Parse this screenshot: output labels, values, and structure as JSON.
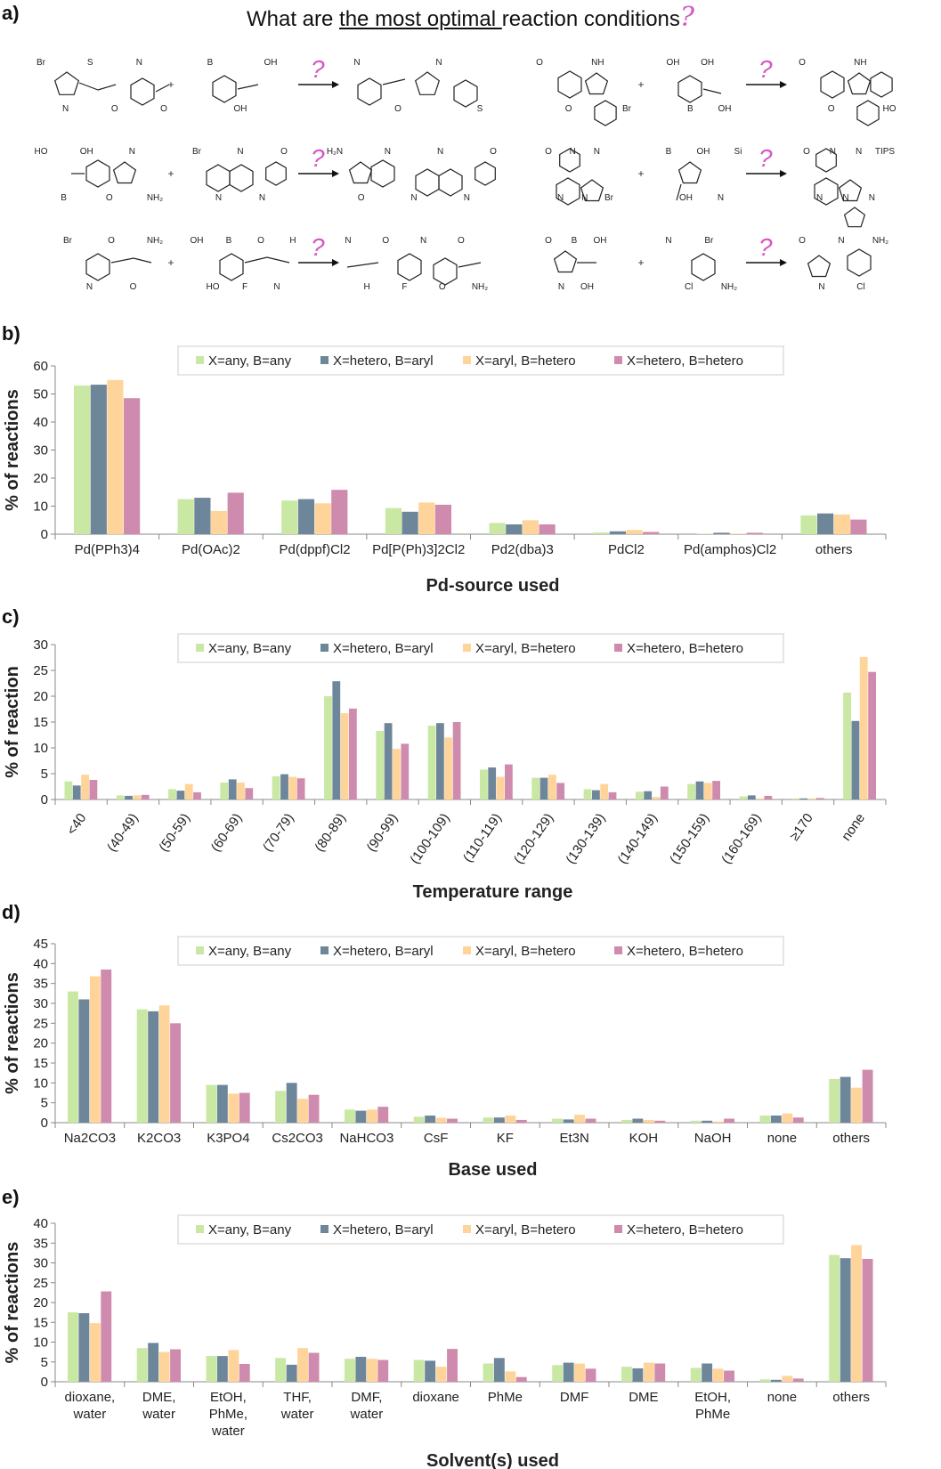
{
  "figure": {
    "panel_labels": [
      "a)",
      "b)",
      "c)",
      "d)",
      "e)"
    ],
    "question": {
      "prefix": "What are ",
      "underlined": "the most optimal ",
      "suffix": "reaction conditions",
      "mark": "?"
    },
    "colors": {
      "s1": "#c9e8a3",
      "s2": "#6e8699",
      "s3": "#ffd49a",
      "s4": "#cf8bad",
      "question": "#d657c4"
    },
    "reactions": [
      {
        "reactant1": "aryl bromide amide",
        "reactant2": "aryl boronic acid",
        "product": "biaryl amide",
        "mark": "?"
      },
      {
        "reactant1": "bromo indole ester",
        "reactant2": "2-hydroxyphenyl boronic acid",
        "product": "aryl indole",
        "mark": "?"
      },
      {
        "reactant1": "benzoxazole boronic acid",
        "reactant2": "bromo naphthyridine",
        "product": "biaryl",
        "mark": "?"
      },
      {
        "reactant1": "bromo imidazopyrazine",
        "reactant2": "pyrrole boronic acid",
        "product": "pyrrolyl imidazopyrazine",
        "mark": "?"
      },
      {
        "reactant1": "bromo pyridine ester",
        "reactant2": "fluoro aryl boronic acid",
        "product": "biaryl ester",
        "mark": "?"
      },
      {
        "reactant1": "isoxazole boronic acid",
        "reactant2": "bromo chloropyridine",
        "product": "isoxazolyl pyridine",
        "mark": "?"
      }
    ],
    "atom_labels": {
      "r1": [
        "Br",
        "N",
        "S",
        "O",
        "N",
        "O"
      ],
      "r2": [
        "B",
        "OH",
        "OH"
      ],
      "r3": [
        "N",
        "O",
        "N",
        "S"
      ],
      "r4": [
        "O",
        "O",
        "NH",
        "Br"
      ],
      "r5": [
        "OH",
        "B",
        "OH",
        "OH"
      ],
      "r6": [
        "O",
        "O",
        "NH",
        "HO"
      ],
      "r7": [
        "HO",
        "B",
        "OH",
        "O",
        "N",
        "NH₂"
      ],
      "r8": [
        "Br",
        "N",
        "N",
        "N",
        "O"
      ],
      "r9": [
        "H₂N",
        "O",
        "N",
        "N",
        "N",
        "N",
        "O"
      ],
      "r10": [
        "O",
        "N",
        "N",
        "N",
        "N",
        "Br"
      ],
      "r11": [
        "B",
        "OH",
        "OH",
        "N",
        "Si"
      ],
      "r12": [
        "O",
        "N",
        "N",
        "N",
        "N",
        "N",
        "TIPS"
      ],
      "r13": [
        "Br",
        "N",
        "O",
        "O",
        "NH₂"
      ],
      "r14": [
        "OH",
        "HO",
        "B",
        "F",
        "O",
        "N",
        "H"
      ],
      "r15": [
        "N",
        "H",
        "O",
        "F",
        "N",
        "O",
        "O",
        "NH₂"
      ],
      "r16": [
        "O",
        "N",
        "B",
        "OH",
        "OH"
      ],
      "r17": [
        "N",
        "Cl",
        "Br",
        "NH₂"
      ],
      "r18": [
        "O",
        "N",
        "N",
        "Cl",
        "NH₂"
      ]
    }
  },
  "chart_data": [
    {
      "type": "bar",
      "panel": "b)",
      "xlabel": "Pd-source used",
      "ylabel": "% of reactions",
      "ylim": [
        0,
        60
      ],
      "yticks": [
        0,
        10,
        20,
        30,
        40,
        50,
        60
      ],
      "legend_position": "top-center",
      "categories": [
        "Pd(PPh3)4",
        "Pd(OAc)2",
        "Pd(dppf)Cl2",
        "Pd[P(Ph)3]2Cl2",
        "Pd2(dba)3",
        "PdCl2",
        "Pd(amphos)Cl2",
        "others"
      ],
      "series": [
        {
          "name": "X=any, B=any",
          "values": [
            53,
            12.5,
            12,
            9.3,
            4,
            0.6,
            0.2,
            6.7
          ]
        },
        {
          "name": "X=hetero, B=aryl",
          "values": [
            53.3,
            13,
            12.5,
            8,
            3.5,
            1,
            0.5,
            7.4
          ]
        },
        {
          "name": "X=aryl, B=hetero",
          "values": [
            55,
            8.3,
            11,
            11.3,
            5,
            1.5,
            0.2,
            7
          ]
        },
        {
          "name": "X=hetero, B=hetero",
          "values": [
            48.5,
            14.8,
            15.8,
            10.5,
            3.5,
            0.8,
            0.5,
            5.2
          ]
        }
      ]
    },
    {
      "type": "bar",
      "panel": "c)",
      "xlabel": "Temperature range",
      "ylabel": "% of reaction",
      "ylim": [
        0,
        30
      ],
      "yticks": [
        0,
        5,
        10,
        15,
        20,
        25,
        30
      ],
      "legend_position": "top-center",
      "categories": [
        "<40",
        "(40-49)",
        "(50-59)",
        "(60-69)",
        "(70-79)",
        "(80-89)",
        "(90-99)",
        "(100-109)",
        "(110-119)",
        "(120-129)",
        "(130-139)",
        "(140-149)",
        "(150-159)",
        "(160-169)",
        "≥170",
        "none"
      ],
      "series": [
        {
          "name": "X=any, B=any",
          "values": [
            3.5,
            0.8,
            2,
            3.3,
            4.5,
            20,
            13.3,
            14.3,
            5.8,
            4.2,
            2,
            1.5,
            3,
            0.6,
            0.2,
            20.7
          ]
        },
        {
          "name": "X=hetero, B=aryl",
          "values": [
            2.7,
            0.7,
            1.7,
            3.9,
            4.9,
            22.9,
            14.8,
            14.8,
            6.2,
            4.2,
            1.8,
            1.6,
            3.5,
            0.8,
            0.2,
            15.2
          ]
        },
        {
          "name": "X=aryl, B=hetero",
          "values": [
            4.8,
            0.8,
            3,
            3.3,
            4.4,
            16.7,
            9.8,
            12,
            4.4,
            4.8,
            3,
            0.5,
            3.2,
            0.2,
            0.2,
            27.6
          ]
        },
        {
          "name": "X=hetero, B=hetero",
          "values": [
            3.8,
            0.9,
            1.4,
            2.2,
            4.1,
            17.6,
            10.8,
            15,
            6.8,
            3.2,
            1.4,
            2.5,
            3.6,
            0.7,
            0.3,
            24.7
          ]
        }
      ]
    },
    {
      "type": "bar",
      "panel": "d)",
      "xlabel": "Base used",
      "ylabel": "% of reactions",
      "ylim": [
        0,
        45
      ],
      "yticks": [
        0,
        5,
        10,
        15,
        20,
        25,
        30,
        35,
        40,
        45
      ],
      "legend_position": "top-center",
      "categories": [
        "Na2CO3",
        "K2CO3",
        "K3PO4",
        "Cs2CO3",
        "NaHCO3",
        "CsF",
        "KF",
        "Et3N",
        "KOH",
        "NaOH",
        "none",
        "others"
      ],
      "series": [
        {
          "name": "X=any, B=any",
          "values": [
            33,
            28.5,
            9.5,
            8,
            3.3,
            1.5,
            1.3,
            1,
            0.7,
            0.5,
            1.8,
            11
          ]
        },
        {
          "name": "X=hetero, B=aryl",
          "values": [
            31,
            28,
            9.5,
            10,
            3,
            1.8,
            1.3,
            0.8,
            1,
            0.5,
            1.8,
            11.5
          ]
        },
        {
          "name": "X=aryl, B=hetero",
          "values": [
            36.8,
            29.5,
            7.3,
            6,
            3.3,
            1.2,
            1.8,
            2,
            0.7,
            0.3,
            2.3,
            8.8
          ]
        },
        {
          "name": "X=hetero, B=hetero",
          "values": [
            38.5,
            25,
            7.5,
            7,
            4,
            1,
            0.7,
            1,
            0.5,
            1,
            1.3,
            13.3
          ]
        }
      ]
    },
    {
      "type": "bar",
      "panel": "e)",
      "xlabel": "Solvent(s) used",
      "ylabel": "% of reactions",
      "ylim": [
        0,
        40
      ],
      "yticks": [
        0,
        5,
        10,
        15,
        20,
        25,
        30,
        35,
        40
      ],
      "legend_position": "top-center",
      "categories": [
        "dioxane,\nwater",
        "DME,\nwater",
        "EtOH,\nPhMe,\nwater",
        "THF,\nwater",
        "DMF,\nwater",
        "dioxane",
        "PhMe",
        "DMF",
        "DME",
        "EtOH,\nPhMe",
        "none",
        "others"
      ],
      "series": [
        {
          "name": "X=any, B=any",
          "values": [
            17.5,
            8.5,
            6.5,
            6,
            5.8,
            5.5,
            4.6,
            4.2,
            3.8,
            3.5,
            0.6,
            32
          ]
        },
        {
          "name": "X=hetero, B=aryl",
          "values": [
            17.3,
            9.8,
            6.5,
            4.3,
            6.3,
            5.3,
            6,
            4.8,
            3.4,
            4.6,
            0.5,
            31.2
          ]
        },
        {
          "name": "X=aryl, B=hetero",
          "values": [
            14.8,
            7.5,
            8,
            8.5,
            5.8,
            3.8,
            2.6,
            4.6,
            4.8,
            3.3,
            1.5,
            34.5
          ]
        },
        {
          "name": "X=hetero, B=hetero",
          "values": [
            22.8,
            8.2,
            4.5,
            7.3,
            5.5,
            8.3,
            1.2,
            3.3,
            4.6,
            2.8,
            0.8,
            31
          ]
        }
      ]
    }
  ]
}
